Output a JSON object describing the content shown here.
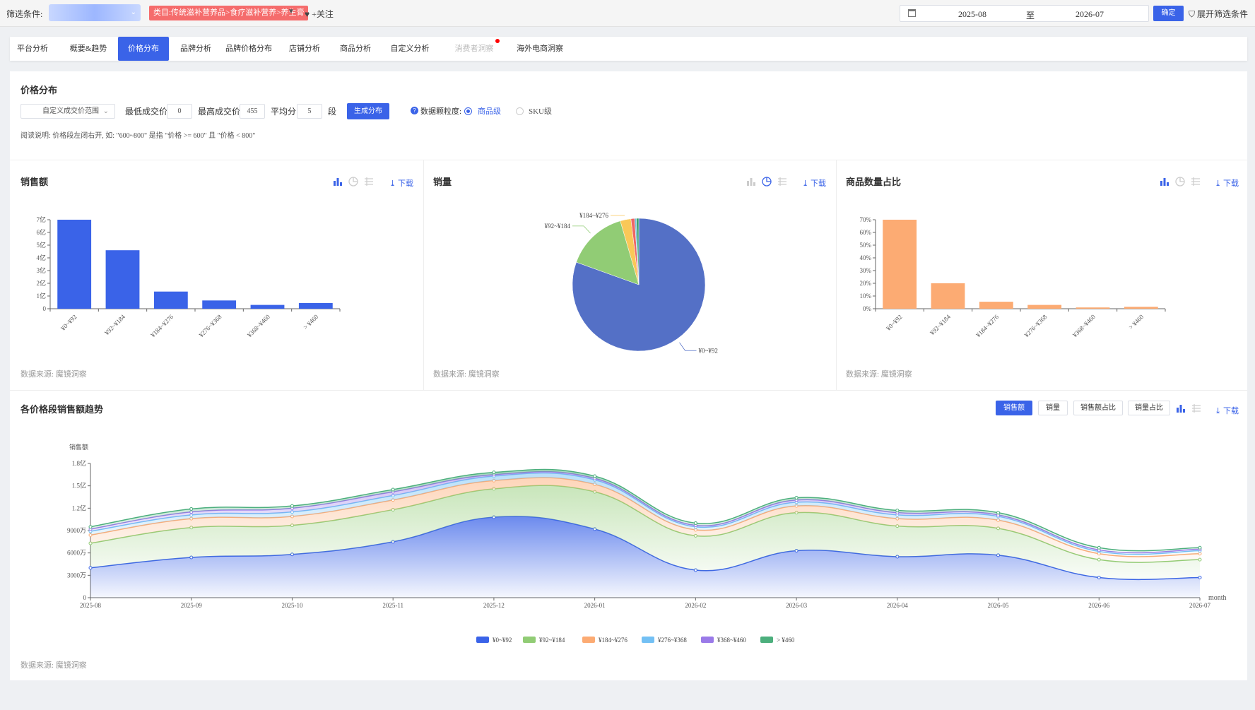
{
  "topbar": {
    "filter_label": "筛选条件:",
    "category_tag": "类目:传统滋补营养品>食疗滋补营养>养生膏",
    "follow_label": "♥ +关注",
    "date_start": "2025-08",
    "date_sep": "至",
    "date_end": "2026-07",
    "confirm_label": "确定",
    "expand_label": "展开筛选条件"
  },
  "tabs": [
    {
      "label": "平台分析"
    },
    {
      "label": "概要&趋势"
    },
    {
      "label": "价格分布",
      "active": true
    },
    {
      "label": "品牌分析"
    },
    {
      "label": "品牌价格分布"
    },
    {
      "label": "店铺分析"
    },
    {
      "label": "商品分析"
    },
    {
      "label": "自定义分析"
    },
    {
      "label": "消费者洞察",
      "disabled": true
    },
    {
      "label": "海外电商洞察"
    }
  ],
  "filters": {
    "section_title": "价格分布",
    "range_select": "自定义成交价范围",
    "min_label": "最低成交价",
    "min_value": "0",
    "max_label": "最高成交价",
    "max_value": "455",
    "avg_label": "平均分",
    "avg_value": "5",
    "seg_label": "段",
    "generate_label": "生成分布",
    "granularity_label": "数据颗粒度:",
    "option_product": "商品级",
    "option_sku": "SKU级",
    "note": "阅读说明: 价格段左闭右开, 如: \"600~800\" 是指 \"价格 >= 600\" 且 \"价格 < 800\""
  },
  "common": {
    "download": "下载",
    "source": "数据来源: 魔镜洞察",
    "accent_color": "#3a63e8"
  },
  "chart_data": [
    {
      "title": "销售额",
      "type": "bar",
      "categories": [
        "¥0~¥92",
        "¥92~¥184",
        "¥184~¥276",
        "¥276~¥368",
        "¥368~¥460",
        "> ¥460"
      ],
      "values": [
        7.0,
        4.6,
        1.35,
        0.65,
        0.3,
        0.45
      ],
      "unit": "亿",
      "ytick_labels": [
        "0",
        "1亿",
        "2亿",
        "3亿",
        "4亿",
        "5亿",
        "6亿",
        "7亿"
      ],
      "ylim": [
        0,
        7
      ],
      "color": "#3a63e8"
    },
    {
      "title": "销量",
      "type": "pie",
      "categories": [
        "¥0~¥92",
        "¥92~¥184",
        "¥184~¥276",
        "¥276~¥368",
        "¥368~¥460",
        "> ¥460"
      ],
      "values": [
        80.5,
        15.0,
        2.6,
        0.9,
        0.4,
        0.6
      ],
      "colors": [
        "#5470c6",
        "#91cc75",
        "#fac858",
        "#ee6666",
        "#73c0de",
        "#3ba272"
      ],
      "labeled": [
        "¥0~¥92",
        "¥92~¥184",
        "¥184~¥276"
      ]
    },
    {
      "title": "商品数量占比",
      "type": "bar",
      "categories": [
        "¥0~¥92",
        "¥92~¥184",
        "¥184~¥276",
        "¥276~¥368",
        "¥368~¥460",
        "> ¥460"
      ],
      "values": [
        70,
        20,
        5.5,
        3,
        1,
        1.5
      ],
      "unit": "%",
      "ytick_labels": [
        "0%",
        "10%",
        "20%",
        "30%",
        "40%",
        "50%",
        "60%",
        "70%"
      ],
      "ylim": [
        0,
        70
      ],
      "color": "#fcab73"
    },
    {
      "title": "各价格段销售额趋势",
      "type": "area",
      "ylabel": "销售额",
      "xlabel": "month",
      "x": [
        "2025-08",
        "2025-09",
        "2025-10",
        "2025-11",
        "2025-12",
        "2026-01",
        "2026-02",
        "2026-03",
        "2026-04",
        "2026-05",
        "2026-06",
        "2026-07"
      ],
      "ytick_labels": [
        "0",
        "3000万",
        "6000万",
        "9000万",
        "1.2亿",
        "1.5亿",
        "1.8亿"
      ],
      "ylim": [
        0,
        18000
      ],
      "stacked": true,
      "series": [
        {
          "name": "¥0~¥92",
          "color": "#3a63e8",
          "values": [
            4000,
            5400,
            5800,
            7500,
            10800,
            9200,
            3700,
            6300,
            5500,
            5700,
            2700,
            2700
          ]
        },
        {
          "name": "¥92~¥184",
          "color": "#91cc75",
          "values": [
            3300,
            4000,
            3900,
            4300,
            3800,
            5000,
            4600,
            5100,
            4100,
            3600,
            2400,
            2400
          ]
        },
        {
          "name": "¥184~¥276",
          "color": "#fcab73",
          "values": [
            1100,
            1200,
            1200,
            1300,
            1100,
            1000,
            800,
            900,
            1000,
            1100,
            800,
            800
          ]
        },
        {
          "name": "¥276~¥368",
          "color": "#73c0f4",
          "values": [
            500,
            500,
            600,
            600,
            600,
            600,
            400,
            500,
            500,
            500,
            300,
            400
          ]
        },
        {
          "name": "¥368~¥460",
          "color": "#9a7ae8",
          "values": [
            300,
            400,
            500,
            500,
            200,
            200,
            200,
            300,
            300,
            200,
            200,
            200
          ]
        },
        {
          "name": "> ¥460",
          "color": "#4caf7d",
          "values": [
            300,
            400,
            300,
            300,
            300,
            300,
            300,
            300,
            300,
            300,
            300,
            200
          ]
        }
      ]
    }
  ],
  "trend_buttons": [
    {
      "label": "销售额",
      "active": true
    },
    {
      "label": "销量"
    },
    {
      "label": "销售额占比"
    },
    {
      "label": "销量占比"
    }
  ]
}
